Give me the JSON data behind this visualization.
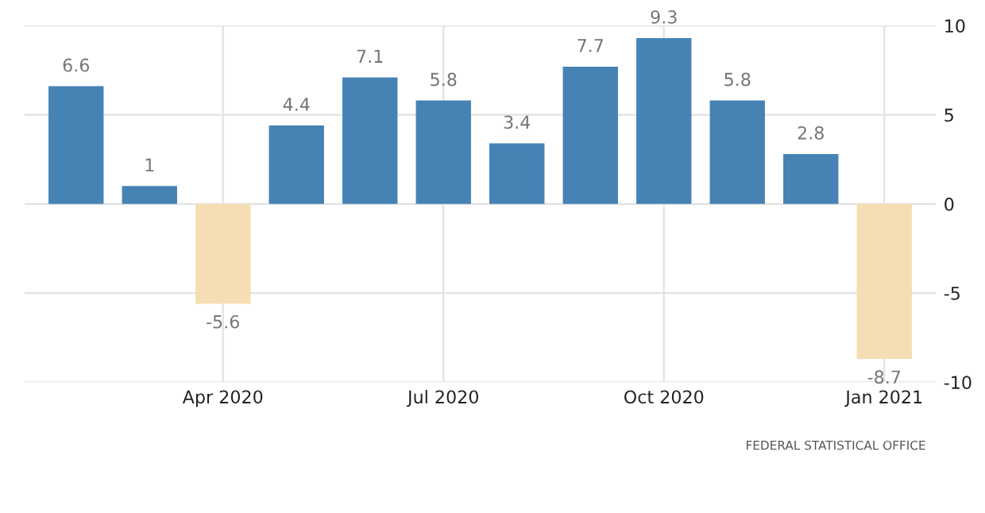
{
  "chart_data": {
    "type": "bar",
    "categories": [
      null,
      null,
      "Apr 2020",
      null,
      null,
      "Jul 2020",
      null,
      null,
      "Oct 2020",
      null,
      null,
      "Jan 2021"
    ],
    "values": [
      6.6,
      1,
      -5.6,
      4.4,
      7.1,
      5.8,
      3.4,
      7.7,
      9.3,
      5.8,
      2.8,
      -8.7
    ],
    "colors": [
      "#4682b4",
      "#4682b4",
      "#f5deb3",
      "#4682b4",
      "#4682b4",
      "#4682b4",
      "#4682b4",
      "#4682b4",
      "#4682b4",
      "#4682b4",
      "#4682b4",
      "#f5deb3"
    ],
    "ylim": [
      -10,
      10
    ],
    "yticks": [
      {
        "value": -10,
        "label": "-10"
      },
      {
        "value": -5,
        "label": "-5"
      },
      0,
      5,
      10
    ],
    "grid": true,
    "data_labels": true,
    "annotations": [
      "FEDERAL STATISTICAL OFFICE"
    ]
  }
}
